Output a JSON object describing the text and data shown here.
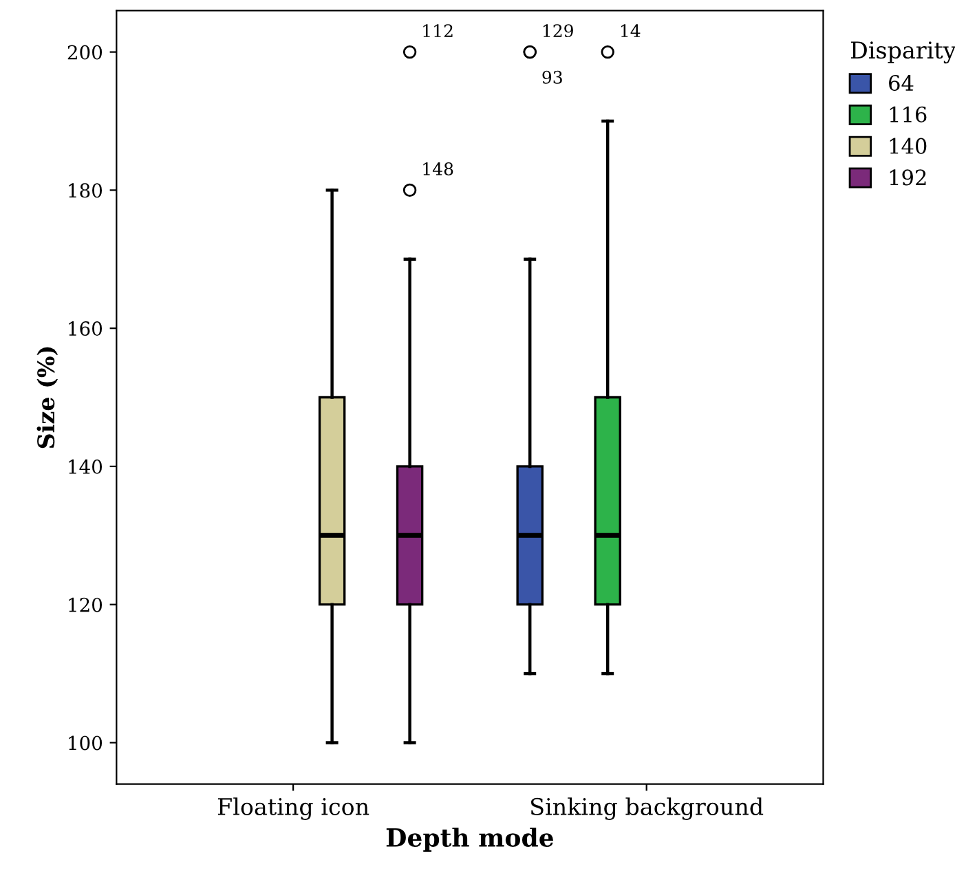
{
  "chart_data": {
    "type": "box",
    "xlabel": "Depth mode",
    "ylabel": "Size (%)",
    "legend_title": "Disparity",
    "legend": "top right",
    "categories": [
      "Floating icon",
      "Sinking background"
    ],
    "ylim": [
      94,
      206
    ],
    "yticks": [
      100,
      120,
      140,
      160,
      180,
      200
    ],
    "grid": false,
    "series": [
      {
        "name": "64",
        "color": "#3a55a8",
        "boxes": [
          null,
          {
            "low": 110,
            "q1": 120,
            "median": 130,
            "q3": 140,
            "high": 170,
            "outliers": [
              200,
              200
            ]
          }
        ]
      },
      {
        "name": "116",
        "color": "#2db34a",
        "boxes": [
          null,
          {
            "low": 110,
            "q1": 120,
            "median": 130,
            "q3": 150,
            "high": 190,
            "outliers": [
              200
            ]
          }
        ]
      },
      {
        "name": "140",
        "color": "#d4ce9a",
        "boxes": [
          {
            "low": 100,
            "q1": 120,
            "median": 130,
            "q3": 150,
            "high": 180
          },
          null
        ]
      },
      {
        "name": "192",
        "color": "#7b2a7a",
        "boxes": [
          {
            "low": 100,
            "q1": 120,
            "median": 130,
            "q3": 140,
            "high": 170,
            "outliers": [
              180,
              200
            ]
          },
          null
        ]
      }
    ],
    "annotations": [
      "129",
      "93",
      "14",
      "148",
      "112"
    ]
  }
}
